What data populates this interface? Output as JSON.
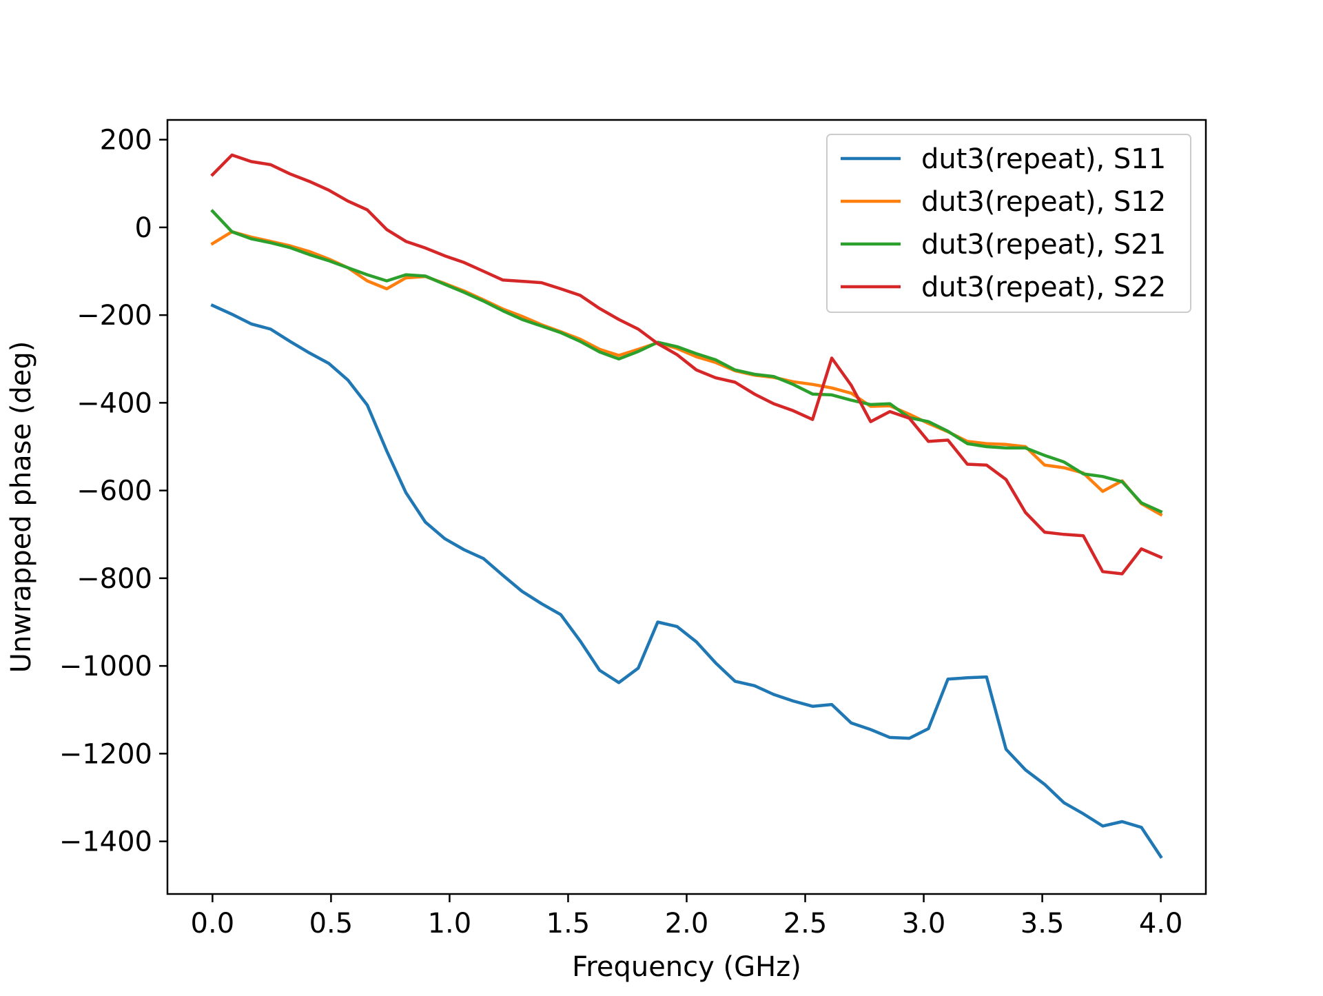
{
  "chart_data": {
    "type": "line",
    "title": "",
    "xlabel": "Frequency (GHz)",
    "ylabel": "Unwrapped phase (deg)",
    "xlim": [
      -0.19,
      4.19
    ],
    "ylim": [
      -1520,
      245
    ],
    "xticks": [
      0.0,
      0.5,
      1.0,
      1.5,
      2.0,
      2.5,
      3.0,
      3.5,
      4.0
    ],
    "xtick_labels": [
      "0.0",
      "0.5",
      "1.0",
      "1.5",
      "2.0",
      "2.5",
      "3.0",
      "3.5",
      "4.0"
    ],
    "yticks": [
      200,
      0,
      -200,
      -400,
      -600,
      -800,
      -1000,
      -1200,
      -1400
    ],
    "ytick_labels": [
      "200",
      "0",
      "−200",
      "−400",
      "−600",
      "−800",
      "−1000",
      "−1200",
      "−1400"
    ],
    "grid": false,
    "legend_position": "top-right",
    "x": [
      0.0,
      0.082,
      0.163,
      0.245,
      0.327,
      0.408,
      0.49,
      0.571,
      0.653,
      0.735,
      0.816,
      0.898,
      0.98,
      1.061,
      1.143,
      1.224,
      1.306,
      1.388,
      1.469,
      1.551,
      1.633,
      1.714,
      1.796,
      1.878,
      1.959,
      2.041,
      2.122,
      2.204,
      2.286,
      2.367,
      2.449,
      2.531,
      2.612,
      2.694,
      2.776,
      2.857,
      2.939,
      3.02,
      3.102,
      3.184,
      3.265,
      3.347,
      3.429,
      3.51,
      3.592,
      3.673,
      3.755,
      3.837,
      3.918,
      4.0
    ],
    "series": [
      {
        "name": "dut3(repeat), S11",
        "color": "#1f77b4",
        "values": [
          -178,
          -198,
          -220,
          -232,
          -260,
          -286,
          -310,
          -348,
          -405,
          -510,
          -605,
          -672,
          -710,
          -735,
          -755,
          -793,
          -830,
          -858,
          -883,
          -943,
          -1010,
          -1038,
          -1005,
          -900,
          -910,
          -945,
          -993,
          -1035,
          -1045,
          -1065,
          -1080,
          -1092,
          -1088,
          -1130,
          -1145,
          -1163,
          -1165,
          -1143,
          -1030,
          -1027,
          -1025,
          -1190,
          -1237,
          -1270,
          -1312,
          -1337,
          -1365,
          -1355,
          -1368,
          -1435
        ]
      },
      {
        "name": "dut3(repeat), S12",
        "color": "#ff7f0e",
        "values": [
          -37,
          -10,
          -22,
          -32,
          -42,
          -55,
          -72,
          -92,
          -122,
          -140,
          -115,
          -112,
          -128,
          -145,
          -165,
          -186,
          -203,
          -222,
          -238,
          -255,
          -278,
          -292,
          -278,
          -263,
          -276,
          -295,
          -308,
          -327,
          -337,
          -342,
          -352,
          -358,
          -366,
          -378,
          -408,
          -407,
          -426,
          -447,
          -466,
          -488,
          -493,
          -495,
          -500,
          -542,
          -548,
          -560,
          -602,
          -578,
          -630,
          -655
        ]
      },
      {
        "name": "dut3(repeat), S21",
        "color": "#2ca02c",
        "values": [
          37,
          -10,
          -26,
          -35,
          -46,
          -62,
          -76,
          -92,
          -108,
          -122,
          -108,
          -111,
          -130,
          -148,
          -168,
          -190,
          -210,
          -225,
          -240,
          -260,
          -284,
          -300,
          -283,
          -262,
          -272,
          -288,
          -302,
          -325,
          -335,
          -340,
          -358,
          -380,
          -382,
          -394,
          -404,
          -402,
          -434,
          -443,
          -465,
          -493,
          -500,
          -503,
          -503,
          -520,
          -535,
          -562,
          -568,
          -580,
          -628,
          -648
        ]
      },
      {
        "name": "dut3(repeat), S22",
        "color": "#d62728",
        "values": [
          120,
          165,
          150,
          143,
          122,
          105,
          85,
          60,
          40,
          -5,
          -32,
          -47,
          -65,
          -80,
          -100,
          -120,
          -123,
          -126,
          -140,
          -155,
          -185,
          -210,
          -232,
          -265,
          -290,
          -325,
          -343,
          -353,
          -380,
          -402,
          -418,
          -438,
          -298,
          -360,
          -443,
          -420,
          -435,
          -488,
          -485,
          -540,
          -542,
          -575,
          -650,
          -695,
          -700,
          -703,
          -785,
          -790,
          -733,
          -752
        ]
      }
    ]
  }
}
